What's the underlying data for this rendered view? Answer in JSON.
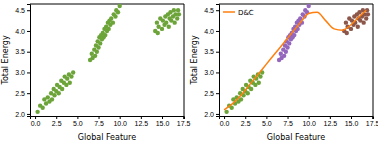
{
  "chart_data": [
    {
      "type": "scatter",
      "xlabel": "Global Feature",
      "ylabel": "Total Energy",
      "xlim": [
        -0.6,
        17.6
      ],
      "ylim": [
        1.95,
        4.65
      ],
      "xticks": [
        {
          "value": 0,
          "label": "0.0"
        },
        2.5,
        {
          "value": 5,
          "label": "5.0"
        },
        7.5,
        {
          "value": 10,
          "label": "10.0"
        },
        12.5,
        {
          "value": 15,
          "label": "15.0"
        },
        17.5
      ],
      "yticks": [
        {
          "value": 2,
          "label": "2.0"
        },
        2.5,
        {
          "value": 3,
          "label": "3.0"
        },
        3.5,
        {
          "value": 4,
          "label": "4.0"
        },
        4.5
      ],
      "series": [
        {
          "color": "#6ca439",
          "x": [
            0.3,
            0.6,
            0.9,
            1.1,
            1.3,
            1.5,
            1.7,
            1.9,
            2.0,
            2.2,
            2.3,
            2.5,
            2.6,
            2.8,
            2.9,
            3.1,
            3.2,
            3.4,
            3.5,
            3.7,
            3.8,
            4.0,
            4.1,
            4.3,
            4.5,
            6.5,
            6.7,
            6.8,
            7.0,
            7.1,
            7.2,
            7.3,
            7.4,
            7.5,
            7.6,
            7.7,
            7.8,
            7.9,
            8.0,
            8.1,
            8.2,
            8.3,
            8.4,
            8.5,
            8.6,
            8.7,
            8.8,
            8.9,
            9.0,
            9.2,
            9.3,
            9.5,
            9.6,
            9.8,
            10.0,
            14.2,
            14.4,
            14.6,
            14.8,
            15.0,
            15.1,
            15.3,
            15.4,
            15.5,
            15.7,
            15.8,
            15.9,
            16.0,
            16.1,
            16.3,
            16.4,
            16.5,
            16.6,
            16.8,
            16.9,
            17.0,
            14.5
          ],
          "values": [
            2.05,
            2.2,
            2.15,
            2.35,
            2.25,
            2.4,
            2.3,
            2.5,
            2.35,
            2.6,
            2.45,
            2.55,
            2.7,
            2.5,
            2.65,
            2.8,
            2.6,
            2.75,
            2.9,
            2.7,
            2.85,
            2.95,
            2.75,
            2.9,
            3.0,
            3.3,
            3.45,
            3.35,
            3.55,
            3.4,
            3.65,
            3.5,
            3.75,
            3.6,
            3.85,
            3.7,
            3.9,
            3.8,
            3.95,
            3.85,
            4.05,
            3.9,
            4.1,
            4.0,
            4.2,
            4.05,
            4.25,
            4.15,
            4.3,
            4.2,
            4.4,
            4.35,
            4.5,
            4.45,
            4.6,
            4.0,
            4.2,
            4.1,
            4.3,
            4.05,
            4.25,
            4.15,
            4.35,
            4.2,
            4.4,
            4.1,
            4.3,
            4.45,
            4.25,
            4.35,
            4.5,
            4.2,
            4.4,
            4.3,
            4.5,
            4.4,
            3.95
          ]
        }
      ]
    },
    {
      "type": "scatter",
      "xlabel": "Global Feature",
      "ylabel": "Total Energy",
      "legend": "upper left",
      "xlim": [
        -0.6,
        17.6
      ],
      "ylim": [
        1.95,
        4.65
      ],
      "xticks": [
        {
          "value": 0,
          "label": "0.0"
        },
        2.5,
        {
          "value": 5,
          "label": "5.0"
        },
        7.5,
        {
          "value": 10,
          "label": "10.0"
        },
        12.5,
        {
          "value": 15,
          "label": "15.0"
        },
        17.5
      ],
      "yticks": [
        {
          "value": 2,
          "label": "2.0"
        },
        2.5,
        {
          "value": 3,
          "label": "3.0"
        },
        3.5,
        {
          "value": 4,
          "label": "4.0"
        },
        4.5
      ],
      "series": [
        {
          "color": "#6ca439",
          "x": [
            0.3,
            0.6,
            0.9,
            1.1,
            1.3,
            1.5,
            1.7,
            1.9,
            2.0,
            2.2,
            2.3,
            2.5,
            2.6,
            2.8,
            2.9,
            3.1,
            3.2,
            3.4,
            3.5,
            3.7,
            3.8,
            4.0,
            4.1,
            4.3,
            4.5
          ],
          "values": [
            2.05,
            2.2,
            2.15,
            2.35,
            2.25,
            2.4,
            2.3,
            2.5,
            2.35,
            2.6,
            2.45,
            2.55,
            2.7,
            2.5,
            2.65,
            2.8,
            2.6,
            2.75,
            2.9,
            2.7,
            2.85,
            2.95,
            2.75,
            2.9,
            3.0
          ]
        },
        {
          "color": "#9467bd",
          "x": [
            6.5,
            6.7,
            6.8,
            7.0,
            7.1,
            7.2,
            7.3,
            7.4,
            7.5,
            7.6,
            7.7,
            7.8,
            7.9,
            8.0,
            8.1,
            8.2,
            8.3,
            8.4,
            8.5,
            8.6,
            8.7,
            8.8,
            8.9,
            9.0,
            9.2,
            9.3,
            9.5,
            9.6,
            9.8,
            10.0
          ],
          "values": [
            3.3,
            3.45,
            3.35,
            3.55,
            3.4,
            3.65,
            3.5,
            3.75,
            3.6,
            3.85,
            3.7,
            3.9,
            3.8,
            3.95,
            3.85,
            4.05,
            3.9,
            4.1,
            4.0,
            4.2,
            4.05,
            4.25,
            4.15,
            4.3,
            4.2,
            4.4,
            4.35,
            4.5,
            4.45,
            4.6
          ]
        },
        {
          "color": "#8c564b",
          "x": [
            14.2,
            14.4,
            14.6,
            14.8,
            15.0,
            15.1,
            15.3,
            15.4,
            15.5,
            15.7,
            15.8,
            15.9,
            16.0,
            16.1,
            16.3,
            16.4,
            16.5,
            16.6,
            16.8,
            16.9,
            17.0,
            14.5
          ],
          "values": [
            4.0,
            4.2,
            4.1,
            4.3,
            4.05,
            4.25,
            4.15,
            4.35,
            4.2,
            4.4,
            4.1,
            4.3,
            4.45,
            4.25,
            4.35,
            4.5,
            4.2,
            4.4,
            4.3,
            4.5,
            4.4,
            3.95
          ]
        },
        {
          "name": "D&C",
          "type": "line",
          "color": "#ff7f0e",
          "x": [
            0,
            1,
            2,
            3,
            4,
            5,
            6,
            7,
            8,
            9,
            10,
            11,
            12,
            13,
            14,
            15,
            16,
            16.8
          ],
          "values": [
            2.1,
            2.25,
            2.45,
            2.7,
            2.95,
            3.2,
            3.45,
            3.7,
            3.95,
            4.2,
            4.42,
            4.45,
            4.25,
            4.05,
            4.02,
            4.15,
            4.35,
            4.5
          ]
        }
      ]
    }
  ]
}
